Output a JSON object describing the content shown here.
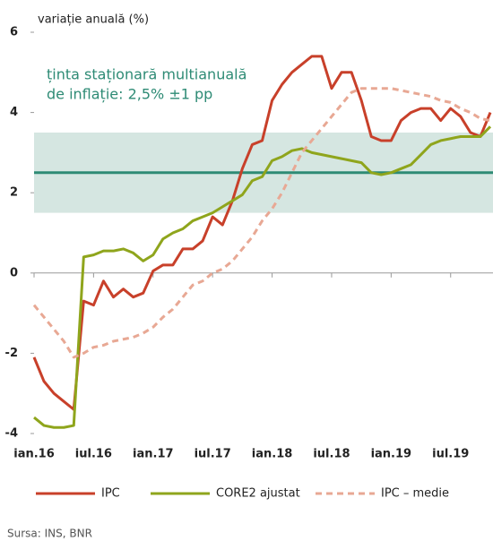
{
  "chart_data": {
    "type": "line",
    "y_axis_label": "variație anuală (%)",
    "annotation": [
      "ținta staționară multianuală",
      "de inflație: 2,5% ±1 pp"
    ],
    "categories": [
      "ian.16",
      null,
      null,
      null,
      null,
      null,
      "iul.16",
      null,
      null,
      null,
      null,
      null,
      "ian.17",
      null,
      null,
      null,
      null,
      null,
      "iul.17",
      null,
      null,
      null,
      null,
      null,
      "ian.18",
      null,
      null,
      null,
      null,
      null,
      "iul.18",
      null,
      null,
      null,
      null,
      null,
      "ian.19",
      null,
      null,
      null,
      null,
      null,
      "iul.19",
      null,
      null,
      null,
      null
    ],
    "series": [
      {
        "name": "IPC",
        "color": "#c8402a",
        "dash": false,
        "values": [
          -2.1,
          -2.7,
          -3.0,
          -3.2,
          -3.4,
          -0.7,
          -0.8,
          -0.2,
          -0.6,
          -0.4,
          -0.6,
          -0.5,
          0.05,
          0.2,
          0.2,
          0.6,
          0.6,
          0.8,
          1.4,
          1.2,
          1.8,
          2.6,
          3.2,
          3.3,
          4.3,
          4.7,
          5.0,
          5.2,
          5.4,
          5.4,
          4.6,
          5.0,
          5.0,
          4.3,
          3.4,
          3.3,
          3.3,
          3.8,
          4.0,
          4.1,
          4.1,
          3.8,
          4.1,
          3.9,
          3.5,
          3.4,
          4.0
        ]
      },
      {
        "name": "CORE2 ajustat",
        "color": "#8fa51c",
        "dash": false,
        "values": [
          -3.6,
          -3.8,
          -3.85,
          -3.85,
          -3.8,
          0.4,
          0.45,
          0.55,
          0.55,
          0.6,
          0.5,
          0.3,
          0.45,
          0.85,
          1.0,
          1.1,
          1.3,
          1.4,
          1.5,
          1.65,
          1.8,
          1.95,
          2.3,
          2.4,
          2.8,
          2.9,
          3.05,
          3.1,
          3.0,
          2.95,
          2.9,
          2.85,
          2.8,
          2.75,
          2.5,
          2.45,
          2.5,
          2.6,
          2.7,
          2.95,
          3.2,
          3.3,
          3.35,
          3.4,
          3.4,
          3.4,
          3.65
        ]
      },
      {
        "name": "IPC – medie",
        "color": "#e8a894",
        "dash": true,
        "values": [
          -0.8,
          -1.1,
          -1.4,
          -1.7,
          -2.1,
          -2.0,
          -1.85,
          -1.8,
          -1.7,
          -1.65,
          -1.6,
          -1.5,
          -1.35,
          -1.1,
          -0.9,
          -0.6,
          -0.3,
          -0.2,
          0.0,
          0.1,
          0.3,
          0.6,
          0.9,
          1.3,
          1.6,
          2.0,
          2.5,
          3.0,
          3.3,
          3.6,
          3.9,
          4.2,
          4.5,
          4.6,
          4.6,
          4.6,
          4.6,
          4.55,
          4.5,
          4.45,
          4.4,
          4.3,
          4.25,
          4.1,
          4.0,
          3.85,
          3.8
        ]
      }
    ],
    "target": 2.5,
    "target_band": [
      1.5,
      3.5
    ],
    "target_color": "#2e8b75",
    "band_color": "#d5e6e1",
    "ylim": [
      -4,
      6
    ],
    "yticks": [
      -4,
      -2,
      0,
      2,
      4,
      6
    ],
    "source": "Sursa: INS, BNR"
  }
}
